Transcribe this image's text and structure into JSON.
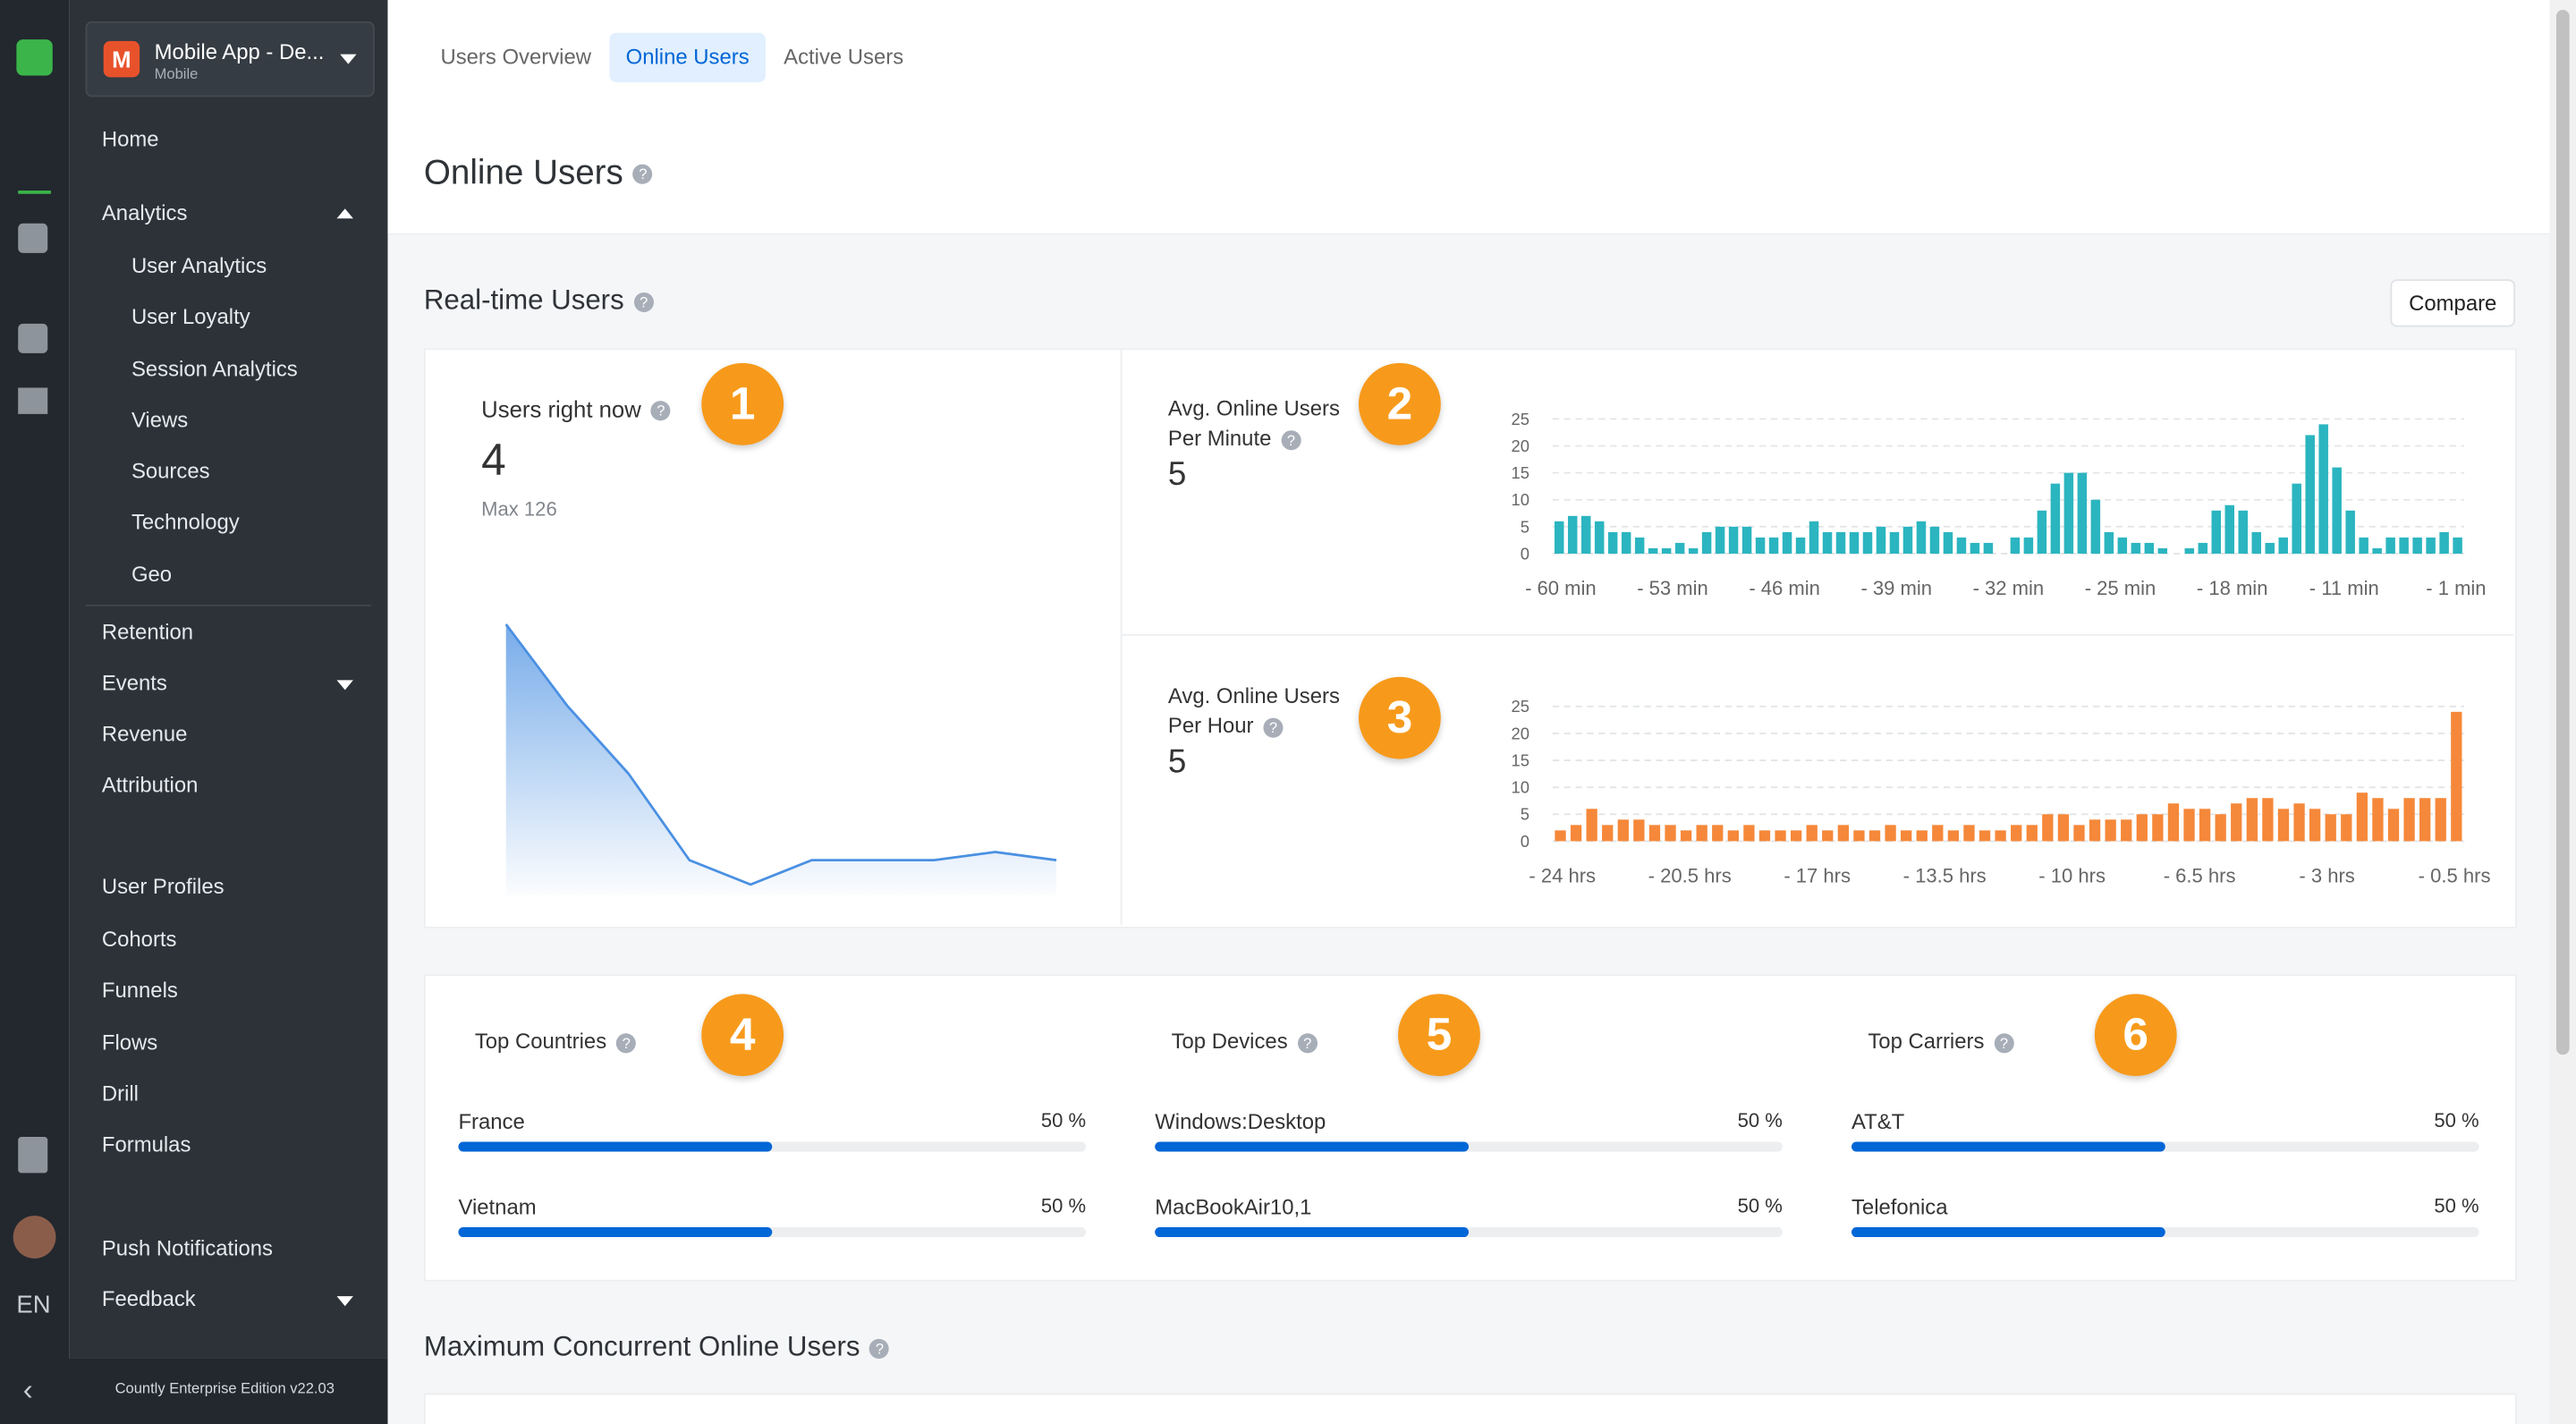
{
  "app": {
    "initial": "M",
    "name": "Mobile App - De...",
    "type": "Mobile"
  },
  "icon_bar": {
    "language": "EN"
  },
  "sidebar": {
    "items": [
      "Home",
      "Analytics",
      "User Analytics",
      "User Loyalty",
      "Session Analytics",
      "Views",
      "Sources",
      "Technology",
      "Geo",
      "Retention",
      "Events",
      "Revenue",
      "Attribution",
      "User Profiles",
      "Cohorts",
      "Funnels",
      "Flows",
      "Drill",
      "Formulas",
      "Push Notifications",
      "Feedback"
    ],
    "footer": "Countly Enterprise Edition v22.03"
  },
  "tabs": [
    "Users Overview",
    "Online Users",
    "Active Users"
  ],
  "page_title": "Online Users",
  "section_title": "Real-time Users",
  "compare_button": "Compare",
  "users_now": {
    "label": "Users right now",
    "value": 4,
    "max_label": "Max 126",
    "badge": 1,
    "chart_data": {
      "type": "line",
      "color": "#4a90e2",
      "values": [
        10,
        7,
        4.5,
        1.3,
        0.4,
        1.3,
        1.3,
        1.3,
        1.6,
        1.3
      ]
    }
  },
  "per_minute": {
    "label": "Avg. Online Users Per Minute",
    "value": 5,
    "badge": 2,
    "chart_data": {
      "type": "bar",
      "color": "#2bb5c0",
      "ylim": [
        0,
        25
      ],
      "yticks": [
        0,
        5,
        10,
        15,
        20,
        25
      ],
      "grid": true,
      "xlabels": [
        "- 60 min",
        "- 53 min",
        "- 46 min",
        "- 39 min",
        "- 32 min",
        "- 25 min",
        "- 18 min",
        "- 11 min",
        "- 1 min"
      ],
      "values": [
        6,
        7,
        7,
        6,
        4,
        4,
        3,
        1,
        1,
        2,
        1,
        4,
        5,
        5,
        5,
        3,
        3,
        4,
        3,
        6,
        4,
        4,
        4,
        4,
        5,
        4,
        5,
        6,
        5,
        4,
        3,
        2,
        2,
        0,
        3,
        3,
        8,
        13,
        15,
        15,
        10,
        4,
        3,
        2,
        2,
        1,
        0,
        1,
        2,
        8,
        9,
        8,
        4,
        2,
        3,
        13,
        22,
        24,
        16,
        8,
        3,
        1,
        3,
        3,
        3,
        3,
        4,
        3
      ]
    }
  },
  "per_hour": {
    "label": "Avg. Online Users Per Hour",
    "value": 5,
    "badge": 3,
    "chart_data": {
      "type": "bar",
      "color": "#f5883a",
      "ylim": [
        0,
        25
      ],
      "yticks": [
        0,
        5,
        10,
        15,
        20,
        25
      ],
      "grid": true,
      "xlabels": [
        "- 24 hrs",
        "- 20.5 hrs",
        "- 17 hrs",
        "- 13.5 hrs",
        "- 10 hrs",
        "- 6.5 hrs",
        "- 3 hrs",
        "- 0.5 hrs"
      ],
      "values": [
        2,
        3,
        6,
        3,
        4,
        4,
        3,
        3,
        2,
        3,
        3,
        2,
        3,
        2,
        2,
        2,
        3,
        2,
        3,
        2,
        2,
        3,
        2,
        2,
        3,
        2,
        3,
        2,
        2,
        3,
        3,
        5,
        5,
        3,
        4,
        4,
        4,
        5,
        5,
        7,
        6,
        6,
        5,
        7,
        8,
        8,
        6,
        7,
        6,
        5,
        5,
        9,
        8,
        6,
        8,
        8,
        8,
        24
      ]
    }
  },
  "top_lists": [
    {
      "title": "Top Countries",
      "badge": 4,
      "items": [
        {
          "name": "France",
          "percent": 50,
          "percent_label": "50 %"
        },
        {
          "name": "Vietnam",
          "percent": 50,
          "percent_label": "50 %"
        }
      ]
    },
    {
      "title": "Top Devices",
      "badge": 5,
      "items": [
        {
          "name": "Windows:Desktop",
          "percent": 50,
          "percent_label": "50 %"
        },
        {
          "name": "MacBookAir10,1",
          "percent": 50,
          "percent_label": "50 %"
        }
      ]
    },
    {
      "title": "Top Carriers",
      "badge": 6,
      "items": [
        {
          "name": "AT&T",
          "percent": 50,
          "percent_label": "50 %"
        },
        {
          "name": "Telefonica",
          "percent": 50,
          "percent_label": "50 %"
        }
      ]
    }
  ],
  "bottom_section_title": "Maximum Concurrent Online Users"
}
